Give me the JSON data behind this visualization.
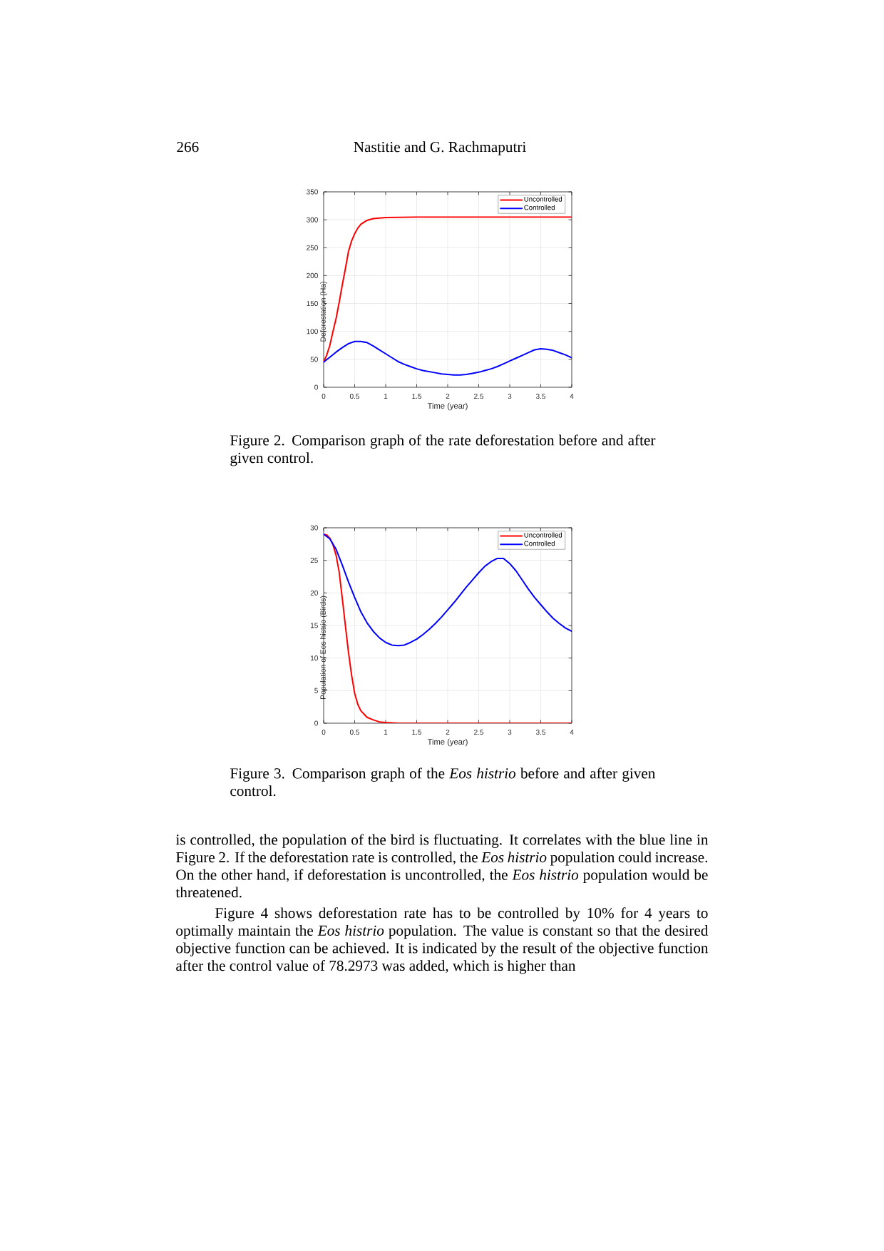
{
  "chart_data": [
    {
      "type": "line",
      "xlabel": "Time (year)",
      "ylabel": "Deforestation (Ha)",
      "xlim": [
        0,
        4
      ],
      "ylim": [
        0,
        350
      ],
      "xticks": [
        0,
        0.5,
        1,
        1.5,
        2,
        2.5,
        3,
        3.5,
        4
      ],
      "yticks": [
        0,
        50,
        100,
        150,
        200,
        250,
        300,
        350
      ],
      "grid": true,
      "legend": "top right",
      "series": [
        {
          "name": "Uncontrolled",
          "color": "#ff0000",
          "x": [
            0,
            0.05,
            0.1,
            0.15,
            0.2,
            0.25,
            0.3,
            0.35,
            0.4,
            0.45,
            0.5,
            0.55,
            0.6,
            0.7,
            0.8,
            0.9,
            1,
            1.5,
            2,
            2.5,
            3,
            3.5,
            4
          ],
          "values": [
            45,
            58,
            75,
            100,
            123,
            152,
            183,
            212,
            243,
            262,
            275,
            285,
            292,
            299,
            302,
            303,
            304,
            305,
            305,
            305,
            305,
            305,
            305
          ]
        },
        {
          "name": "Controlled",
          "color": "#0000ff",
          "x": [
            0,
            0.1,
            0.2,
            0.3,
            0.4,
            0.5,
            0.6,
            0.7,
            0.8,
            0.9,
            1,
            1.1,
            1.2,
            1.3,
            1.4,
            1.5,
            1.6,
            1.7,
            1.8,
            1.9,
            2,
            2.1,
            2.2,
            2.3,
            2.4,
            2.5,
            2.6,
            2.7,
            2.8,
            2.9,
            3,
            3.1,
            3.2,
            3.3,
            3.4,
            3.5,
            3.6,
            3.7,
            3.8,
            3.9,
            4
          ],
          "values": [
            45,
            54,
            63,
            71,
            78,
            82,
            82,
            80,
            74,
            67,
            60,
            53,
            46,
            41,
            37,
            33,
            30,
            28,
            26,
            24,
            23,
            22,
            22,
            23,
            25,
            27,
            30,
            33,
            37,
            42,
            47,
            52,
            57,
            62,
            67,
            69,
            68,
            66,
            62,
            58,
            53
          ]
        }
      ],
      "annotations": [
        "266",
        "Nastitie and G. Rachmaputri",
        "Figure 2. Comparison graph of the rate deforestation before and after given control."
      ]
    },
    {
      "type": "line",
      "xlabel": "Time (year)",
      "ylabel": "Population of Eos histrio (Birds)",
      "xlim": [
        0,
        4
      ],
      "ylim": [
        0,
        30
      ],
      "xticks": [
        0,
        0.5,
        1,
        1.5,
        2,
        2.5,
        3,
        3.5,
        4
      ],
      "yticks": [
        0,
        5,
        10,
        15,
        20,
        25,
        30
      ],
      "grid": true,
      "legend": "top right",
      "series": [
        {
          "name": "Uncontrolled",
          "color": "#ff0000",
          "x": [
            0,
            0.05,
            0.1,
            0.15,
            0.2,
            0.25,
            0.3,
            0.35,
            0.4,
            0.45,
            0.5,
            0.55,
            0.6,
            0.7,
            0.8,
            0.9,
            1,
            1.2,
            1.5,
            2,
            3,
            4
          ],
          "values": [
            29,
            28.9,
            28.4,
            27.4,
            25.8,
            23.2,
            19.2,
            15,
            10.9,
            7.4,
            4.6,
            2.9,
            1.9,
            0.9,
            0.5,
            0.2,
            0.1,
            0,
            0,
            0,
            0,
            0
          ]
        },
        {
          "name": "Controlled",
          "color": "#0000ff",
          "x": [
            0,
            0.1,
            0.2,
            0.3,
            0.4,
            0.5,
            0.6,
            0.7,
            0.8,
            0.9,
            1,
            1.1,
            1.2,
            1.3,
            1.4,
            1.5,
            1.6,
            1.7,
            1.8,
            1.9,
            2,
            2.1,
            2.2,
            2.3,
            2.4,
            2.5,
            2.6,
            2.7,
            2.8,
            2.9,
            3,
            3.1,
            3.2,
            3.3,
            3.4,
            3.5,
            3.6,
            3.7,
            3.8,
            3.9,
            4
          ],
          "values": [
            29,
            28.3,
            26.7,
            24.3,
            21.7,
            19.3,
            17.1,
            15.4,
            14.1,
            13.1,
            12.4,
            12,
            11.9,
            12,
            12.4,
            12.9,
            13.6,
            14.4,
            15.3,
            16.3,
            17.4,
            18.5,
            19.7,
            20.9,
            22,
            23.1,
            24.1,
            24.8,
            25.3,
            25.3,
            24.5,
            23.4,
            22,
            20.6,
            19.3,
            18.2,
            17.1,
            16.1,
            15.3,
            14.6,
            14.1
          ]
        }
      ],
      "annotations": [
        "Figure 3. Comparison graph of the *Eos histrio* before and after given control.",
        "is controlled, the population of the bird is fluctuating. It correlates with the blue line in Figure 2. If the deforestation rate is controlled, the *Eos histrio* population could increase. On the other hand, if deforestation is uncontrolled, the *Eos histrio* population would be threatened.",
        "Figure 4 shows deforestation rate has to be controlled by 10% for 4 years to optimally maintain the *Eos histrio* population. The value is constant so that the desired objective function can be achieved. It is indicated by the result of the objective function after the control value of 78.2973 was added, which is higher than"
      ]
    }
  ]
}
